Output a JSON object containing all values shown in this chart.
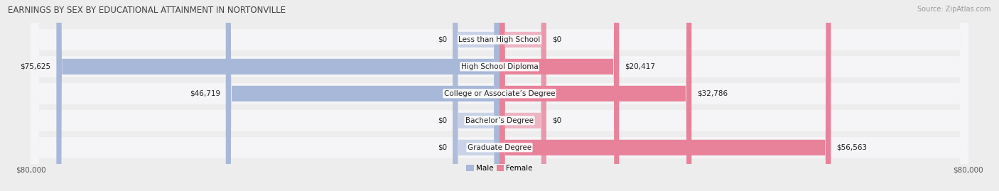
{
  "title": "EARNINGS BY SEX BY EDUCATIONAL ATTAINMENT IN NORTONVILLE",
  "source": "Source: ZipAtlas.com",
  "categories": [
    "Less than High School",
    "High School Diploma",
    "College or Associate’s Degree",
    "Bachelor’s Degree",
    "Graduate Degree"
  ],
  "male_values": [
    0,
    75625,
    46719,
    0,
    0
  ],
  "female_values": [
    0,
    20417,
    32786,
    0,
    56563
  ],
  "male_stub": 8000,
  "female_stub": 8000,
  "male_color": "#a8b8d8",
  "female_color": "#e8829a",
  "male_label": "Male",
  "female_label": "Female",
  "axis_max": 80000,
  "bg_color": "#ededee",
  "row_bg_color": "#f5f5f7",
  "title_fontsize": 8.5,
  "label_fontsize": 7.5,
  "tick_fontsize": 7.5,
  "source_fontsize": 7
}
